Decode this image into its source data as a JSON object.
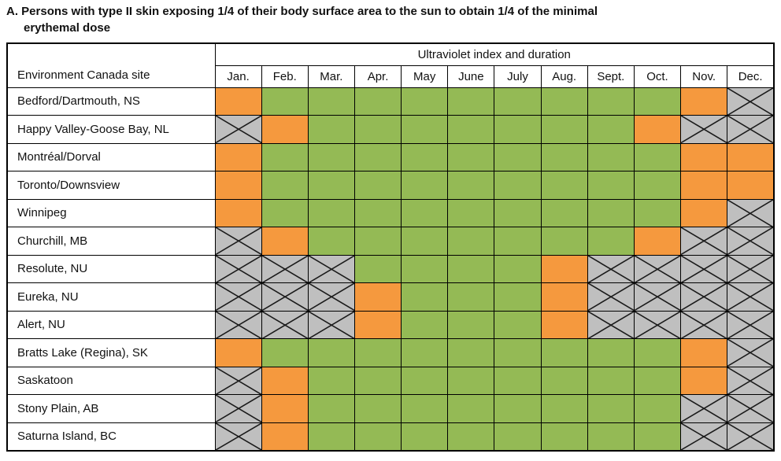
{
  "chart_data": {
    "type": "heatmap",
    "title": "A. Persons with type II skin exposing 1/4 of their body surface area to the sun to obtain 1/4 of the minimal erythemal dose",
    "title_lines": [
      "A. Persons with type II skin exposing 1/4 of their body surface area to the sun to obtain 1/4 of the minimal",
      "erythemal dose"
    ],
    "row_header_label": "Environment Canada site",
    "column_group_label": "Ultraviolet index and duration",
    "columns": [
      "Jan.",
      "Feb.",
      "Mar.",
      "Apr.",
      "May",
      "June",
      "July",
      "Aug.",
      "Sept.",
      "Oct.",
      "Nov.",
      "Dec."
    ],
    "rows": [
      "Bedford/Dartmouth, NS",
      "Happy Valley-Goose Bay, NL",
      "Montréal/Dorval",
      "Toronto/Downsview",
      "Winnipeg",
      "Churchill, MB",
      "Resolute, NU",
      "Eureka, NU",
      "Alert, NU",
      "Bratts Lake (Regina), SK",
      "Saskatoon",
      "Stony Plain, AB",
      "Saturna Island, BC"
    ],
    "values": [
      [
        "orange",
        "green",
        "green",
        "green",
        "green",
        "green",
        "green",
        "green",
        "green",
        "green",
        "orange",
        "na"
      ],
      [
        "na",
        "orange",
        "green",
        "green",
        "green",
        "green",
        "green",
        "green",
        "green",
        "orange",
        "na",
        "na"
      ],
      [
        "orange",
        "green",
        "green",
        "green",
        "green",
        "green",
        "green",
        "green",
        "green",
        "green",
        "orange",
        "orange"
      ],
      [
        "orange",
        "green",
        "green",
        "green",
        "green",
        "green",
        "green",
        "green",
        "green",
        "green",
        "orange",
        "orange"
      ],
      [
        "orange",
        "green",
        "green",
        "green",
        "green",
        "green",
        "green",
        "green",
        "green",
        "green",
        "orange",
        "na"
      ],
      [
        "na",
        "orange",
        "green",
        "green",
        "green",
        "green",
        "green",
        "green",
        "green",
        "orange",
        "na",
        "na"
      ],
      [
        "na",
        "na",
        "na",
        "green",
        "green",
        "green",
        "green",
        "orange",
        "na",
        "na",
        "na",
        "na"
      ],
      [
        "na",
        "na",
        "na",
        "orange",
        "green",
        "green",
        "green",
        "orange",
        "na",
        "na",
        "na",
        "na"
      ],
      [
        "na",
        "na",
        "na",
        "orange",
        "green",
        "green",
        "green",
        "orange",
        "na",
        "na",
        "na",
        "na"
      ],
      [
        "orange",
        "green",
        "green",
        "green",
        "green",
        "green",
        "green",
        "green",
        "green",
        "green",
        "orange",
        "na"
      ],
      [
        "na",
        "orange",
        "green",
        "green",
        "green",
        "green",
        "green",
        "green",
        "green",
        "green",
        "orange",
        "na"
      ],
      [
        "na",
        "orange",
        "green",
        "green",
        "green",
        "green",
        "green",
        "green",
        "green",
        "green",
        "na",
        "na"
      ],
      [
        "na",
        "orange",
        "green",
        "green",
        "green",
        "green",
        "green",
        "green",
        "green",
        "green",
        "na",
        "na"
      ]
    ],
    "cell_colors": {
      "orange": "#F5993E",
      "green": "#94BA55",
      "na": "#BFBFBF"
    },
    "layout": {
      "grid": "on",
      "na_marker": "diagonal-cross"
    }
  }
}
